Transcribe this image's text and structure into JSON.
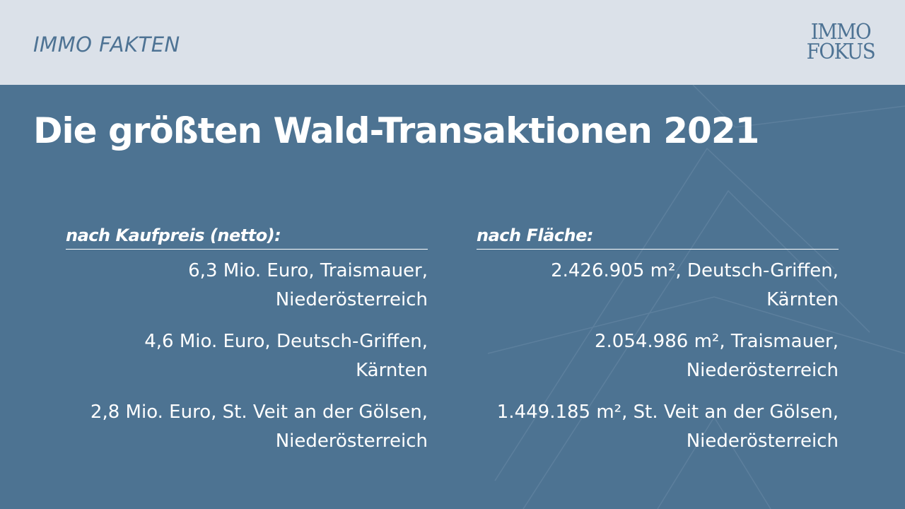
{
  "header": {
    "section_label": "IMMO FAKTEN",
    "logo_line1": "IMMO",
    "logo_line2": "FOKUS"
  },
  "title": "Die größten Wald-Transaktionen 2021",
  "columns": [
    {
      "heading": "nach Kaufpreis (netto):",
      "entries": [
        {
          "line1": "6,3 Mio. Euro, Traismauer,",
          "line2": "Niederösterreich"
        },
        {
          "line1": "4,6 Mio. Euro, Deutsch-Griffen,",
          "line2": "Kärnten"
        },
        {
          "line1": "2,8 Mio. Euro, St. Veit an der Gölsen,",
          "line2": "Niederösterreich"
        }
      ]
    },
    {
      "heading": "nach Fläche:",
      "entries": [
        {
          "line1": "2.426.905 m², Deutsch-Griffen,",
          "line2": "Kärnten"
        },
        {
          "line1": "2.054.986 m², Traismauer,",
          "line2": "Niederösterreich"
        },
        {
          "line1": "1.449.185 m², St. Veit an der Gölsen,",
          "line2": "Niederösterreich"
        }
      ]
    }
  ],
  "colors": {
    "background": "#4d7392",
    "topbar": "#dbe1e9",
    "brand": "#4e7394",
    "text": "#ffffff"
  }
}
